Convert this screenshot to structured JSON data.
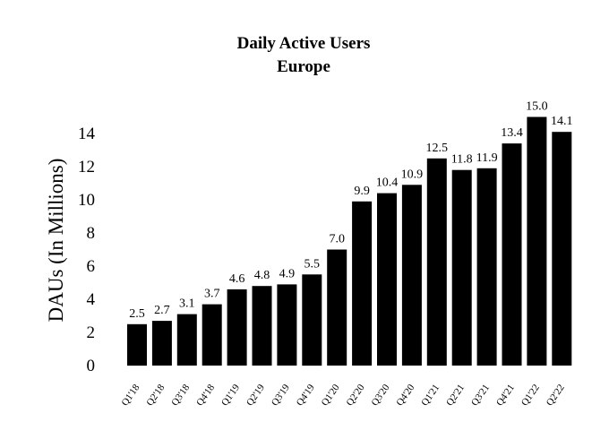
{
  "chart_data": {
    "type": "bar",
    "title": "Daily Active Users",
    "subtitle": "Europe",
    "xlabel": "",
    "ylabel": "DAUs (In Millions)",
    "ylim": [
      0,
      16
    ],
    "yticks": [
      0,
      2,
      4,
      6,
      8,
      10,
      12,
      14
    ],
    "grid": false,
    "legend": "none",
    "bar_color": "#000000",
    "categories": [
      "Q1'18",
      "Q2'18",
      "Q3'18",
      "Q4'18",
      "Q1'19",
      "Q2'19",
      "Q3'19",
      "Q4'19",
      "Q1'20",
      "Q2'20",
      "Q3'20",
      "Q4'20",
      "Q1'21",
      "Q2'21",
      "Q3'21",
      "Q4'21",
      "Q1'22",
      "Q2'22"
    ],
    "values": [
      2.5,
      2.7,
      3.1,
      3.7,
      4.6,
      4.8,
      4.9,
      5.5,
      7.0,
      9.9,
      10.4,
      10.9,
      12.5,
      11.8,
      11.9,
      13.4,
      15.0,
      14.1
    ],
    "data_labels": [
      "2.5",
      "2.7",
      "3.1",
      "3.7",
      "4.6",
      "4.8",
      "4.9",
      "5.5",
      "7.0",
      "9.9",
      "10.4",
      "10.9",
      "12.5",
      "11.8",
      "11.9",
      "13.4",
      "15.0",
      "14.1"
    ]
  }
}
